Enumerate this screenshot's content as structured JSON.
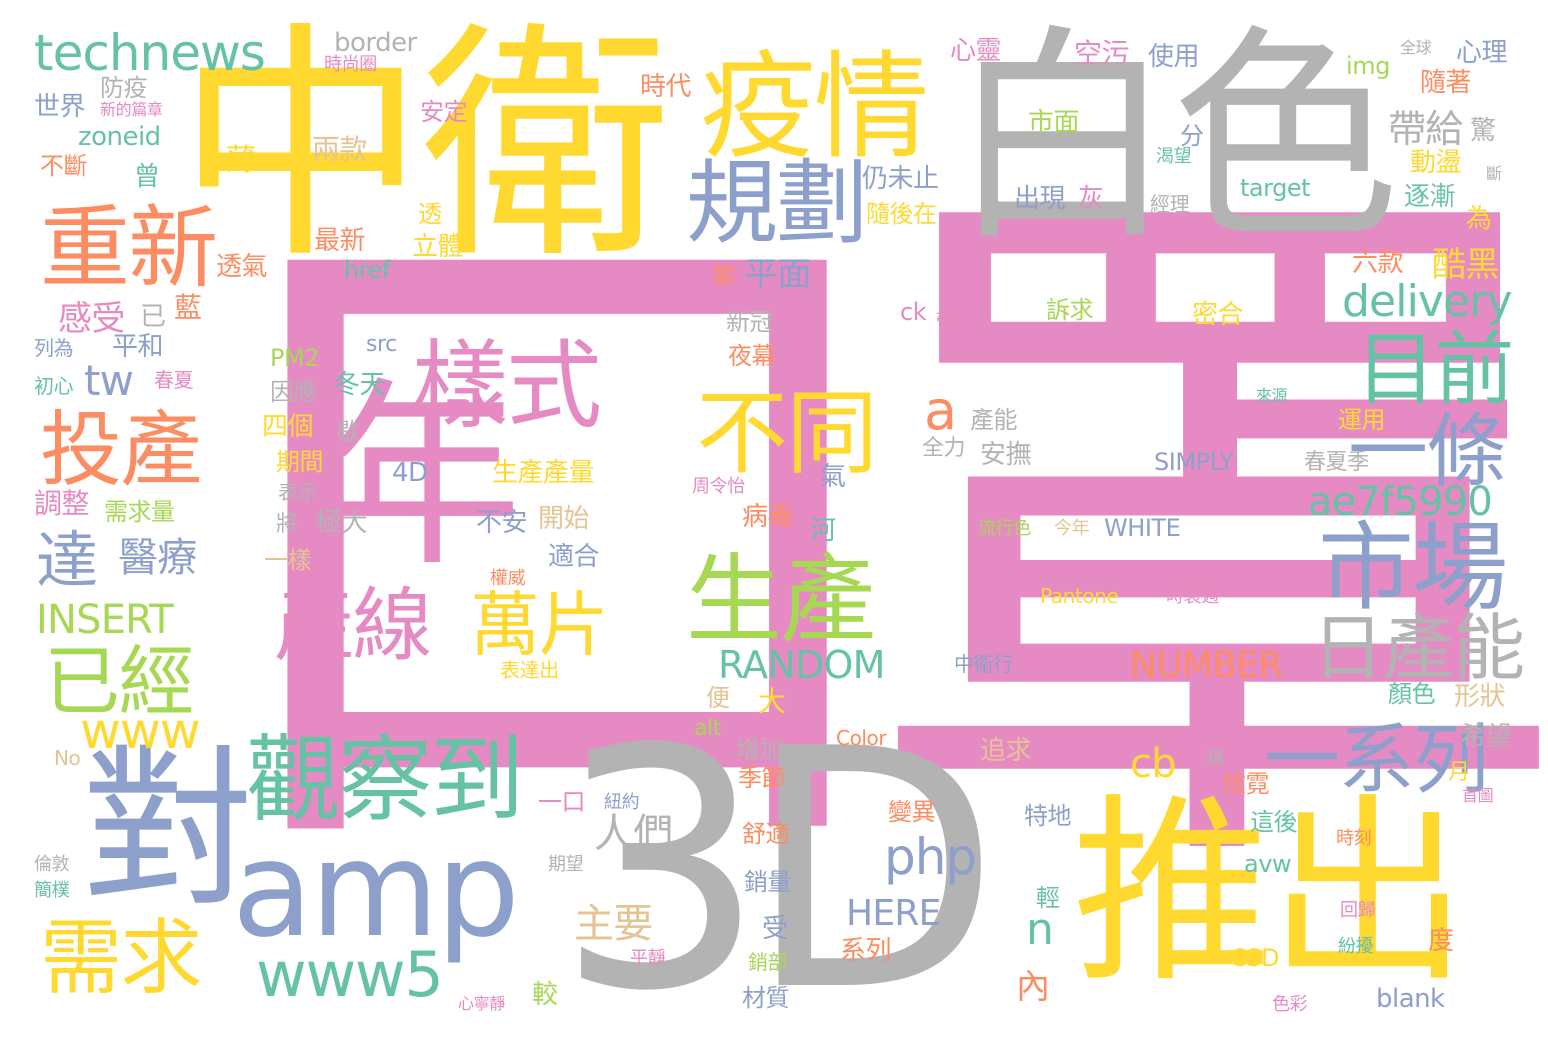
{
  "palette": {
    "pink": "#e68ac3",
    "yellow": "#ffd92f",
    "grey": "#b3b3b3",
    "blue": "#8da0cb",
    "green": "#66c2a5",
    "orange": "#fc8d62",
    "lime": "#a6d854",
    "tan": "#e5c494"
  },
  "words": {
    "kouzhao": "口罩",
    "zhongwei": "中衛",
    "baise": "白色",
    "td": "3D",
    "dui": "對",
    "tuichu": "推出",
    "amp": "amp",
    "yiqing": "疫情",
    "guihua": "規劃",
    "chongxin": "重新",
    "technews": "technews",
    "touchan": "投產",
    "yangshi": "樣式",
    "nian": "年",
    "chanxian": "產線",
    "butong": "不同",
    "shengchan": "生產",
    "shichang": "市場",
    "mubian": "目前",
    "yitiao": "一條",
    "richanneng": "日產能",
    "guanchadao": "觀察到",
    "xuqiu": "需求",
    "yijing": "已經",
    "yixilie": "一系列",
    "www5": "www5",
    "www": "www",
    "wanpian": "萬片",
    "php": "php",
    "delivery": "delivery",
    "ae7f5990": "ae7f5990",
    "da": "達",
    "yiliao": "醫療",
    "insert": "INSERT",
    "random": "RANDOM",
    "number": "NUMBER",
    "here": "HERE",
    "simply": "SIMPLY",
    "white": "WHITE",
    "pantone": "Pantone",
    "color": "Color",
    "a": "a",
    "tw": "tw",
    "n": "n",
    "cb": "cb",
    "border": "border",
    "zoneid": "zoneid",
    "shijie": "世界",
    "fangyi": "防疫",
    "buduan": "不斷",
    "bao": "薄",
    "liangkuan": "兩款",
    "zeng": "曾",
    "touqi": "透氣",
    "zuixin": "最新",
    "href": "href",
    "ganshou": "感受",
    "yi2": "已",
    "lan": "藍",
    "pinghe": "平和",
    "liewei": "列為",
    "chuxin": "初心",
    "chunxia": "春夏",
    "src": "src",
    "pm2": "PM2",
    "dongtian": "冬天",
    "yinying": "因應",
    "sige": "四個",
    "xie": "歇",
    "qijian": "期間",
    "biaoshi": "表示",
    "jiang": "將",
    "jida": "極大",
    "yiyang": "一樣",
    "tiaozheng": "調整",
    "xuqiuliang": "需求量",
    "d4": "4D",
    "shengchanchanliang": "生產產量",
    "buan": "不安",
    "kaishi": "開始",
    "shihe": "適合",
    "quanwei": "權威",
    "biaodachu": "表達出",
    "shijiantu": "時尚圈",
    "andingf": "安定",
    "shidai": "時代",
    "xinde": "新的篇章",
    "kongwu": "空污",
    "shiyong": "使用",
    "xinling": "心靈",
    "img": "img",
    "quanqiu": "全球",
    "xinli": "心理",
    "suizhe": "隨著",
    "shimian": "市面",
    "fen": "分",
    "kewang": "渴望",
    "daigei": "帶給",
    "jing": "驚",
    "dongdang": "動盪",
    "duan": "斷",
    "rengweizhi": "仍未止",
    "chuxian": "出現",
    "hui": "灰",
    "target": "target",
    "zhuji": "逐漸",
    "jingli": "經理",
    "suihouzai": "隨後在",
    "wei": "為",
    "tou": "透",
    "liti": "立體",
    "zi": "紫",
    "pingmian": "平面",
    "liukuan": "六款",
    "kuhei": "酷黑",
    "ck": "ck",
    "daichu": "帶出",
    "suqiu": "訴求",
    "mihe": "密合",
    "xinguan": "新冠",
    "yemu": "夜幕",
    "chanleng": "產能",
    "quanli": "全力",
    "anfu": "安撫",
    "qi": "氣",
    "zhoulingyi": "周令怡",
    "bingdu": "病毒",
    "he": "河",
    "liuxingse": "流行色",
    "jinnian": "今年",
    "laiyuan": "來源",
    "yunyong": "運用",
    "chunxiaji": "春夏季",
    "shizhuangzhou": "時裝週",
    "zhongweihang": "中衛行",
    "bian": "便",
    "da2": "大",
    "alt": "alt",
    "zengjia": "增加",
    "jijie": "季節",
    "zhuiqiu": "追求",
    "yanse": "顏色",
    "xingzhuang": "形狀",
    "xiwang": "希望",
    "xuanlu": "炫霓",
    "yue": "月",
    "cheng": "稱",
    "shouye": "首圖",
    "no": "No",
    "yikou": "一口",
    "niuyue": "紐約",
    "renmen": "人們",
    "bianyi": "變異",
    "tedi": "特地",
    "zhehou": "這後",
    "shike": "時刻",
    "shushi": "舒適",
    "qiwang": "期望",
    "lundun": "倫敦",
    "jianpu": "簡樸",
    "xiaoliang": "銷量",
    "qing": "輕",
    "avw": "avw",
    "huigui": "回歸",
    "zhuyao": "主要",
    "shou": "受",
    "xilie": "系列",
    "fenrao": "紛擾",
    "du": "度",
    "csd": "CSD",
    "pingjing": "平靜",
    "xiaobu": "銷部",
    "nei": "內",
    "xinningjing": "心寧靜",
    "jiao": "較",
    "caizhi": "材質",
    "blank": "blank",
    "secai": "色彩"
  }
}
